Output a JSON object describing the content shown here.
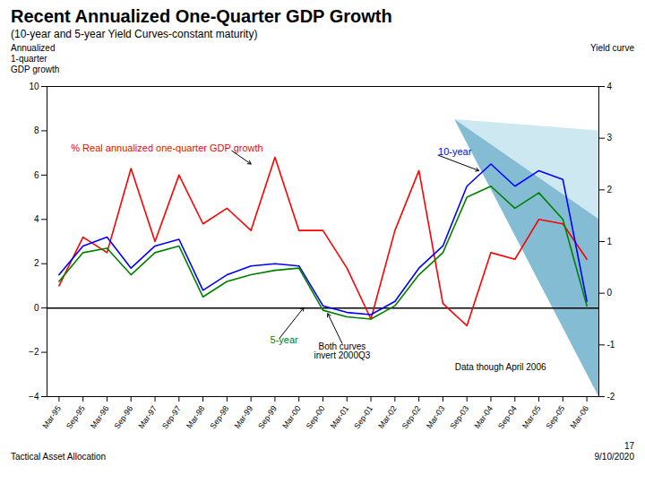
{
  "chart_data": {
    "type": "line",
    "title": "Recent Annualized One-Quarter GDP Growth",
    "subtitle": "(10-year and 5-year Yield Curves-constant maturity)",
    "y_label": "Annualized\n1-quarter\nGDP growth",
    "y2_label": "Yield curve",
    "categories": [
      "Mar-95",
      "Sep-95",
      "Mar-96",
      "Sep-96",
      "Mar-97",
      "Sep-97",
      "Mar-98",
      "Sep-98",
      "Mar-99",
      "Sep-99",
      "Mar-00",
      "Sep-00",
      "Mar-01",
      "Sep-01",
      "Mar-02",
      "Sep-02",
      "Mar-03",
      "Sep-03",
      "Mar-04",
      "Sep-04",
      "Mar-05",
      "Sep-05",
      "Mar-06"
    ],
    "series": [
      {
        "name": "% Real annualized one-quarter GDP growth",
        "color": "red",
        "values": [
          1.0,
          3.2,
          2.5,
          6.3,
          3.0,
          6.0,
          3.8,
          4.5,
          3.5,
          6.8,
          3.5,
          3.5,
          1.8,
          -0.5,
          3.5,
          6.2,
          0.2,
          -0.8,
          2.5,
          2.2,
          4.0,
          3.8,
          2.2
        ]
      },
      {
        "name": "10-year",
        "color": "blue",
        "values": [
          1.5,
          2.8,
          3.2,
          1.8,
          2.8,
          3.1,
          0.8,
          1.5,
          1.9,
          2.0,
          1.9,
          0.1,
          -0.2,
          -0.3,
          0.3,
          1.8,
          2.8,
          5.5,
          6.5,
          5.5,
          6.2,
          5.8,
          0.3
        ]
      },
      {
        "name": "5-year",
        "color": "green",
        "values": [
          1.2,
          2.5,
          2.7,
          1.5,
          2.5,
          2.8,
          0.5,
          1.2,
          1.5,
          1.7,
          1.8,
          -0.1,
          -0.4,
          -0.5,
          0.1,
          1.5,
          2.5,
          5.0,
          5.5,
          4.5,
          5.2,
          4.0,
          0.1
        ]
      }
    ],
    "ylim": [
      -4,
      10
    ],
    "yticks": [
      -4,
      -2,
      0,
      2,
      4,
      6,
      8,
      10
    ],
    "y2lim": [
      -2,
      4
    ],
    "y2ticks": [
      -2,
      -1,
      0,
      1,
      2,
      3,
      4
    ],
    "cone": {
      "apex": {
        "x": 16.5,
        "y": 8.5
      },
      "right_x": 22.5,
      "outer": {
        "top": 8.0,
        "bottom": -4.0,
        "color": "#85c5de"
      },
      "inner": {
        "top": 4.0,
        "bottom": -4.0,
        "color": "#3a8fb5"
      }
    },
    "annotations": [
      "Both curves\ninvert 2000Q3",
      "Data though April 2006"
    ],
    "footer": [
      "Tactical Asset Allocation",
      "17",
      "9/10/2020"
    ]
  }
}
